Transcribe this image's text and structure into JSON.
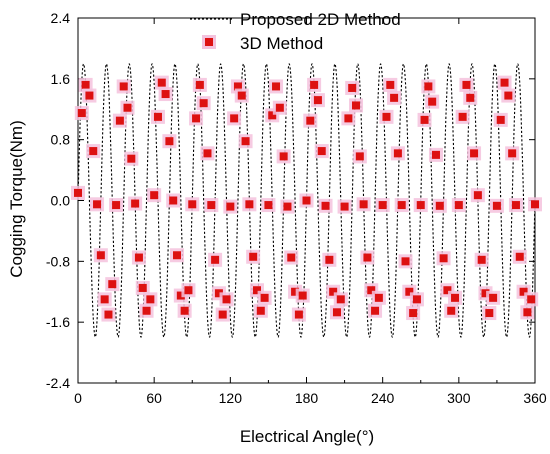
{
  "chart_data": {
    "type": "line",
    "title": "",
    "xlabel": "Electrical Angle(°)",
    "ylabel": "Cogging Torque(Nm)",
    "xlim": [
      0,
      360
    ],
    "ylim": [
      -2.4,
      2.4
    ],
    "x_ticks": [
      "0",
      "60",
      "120",
      "180",
      "240",
      "300",
      "360"
    ],
    "y_ticks": [
      "2.4",
      "1.6",
      "0.8",
      "0.0",
      "-0.8",
      "-1.6",
      "-2.4"
    ],
    "grid": false,
    "legend_position": "top-right",
    "series": [
      {
        "name": "Proposed 2D Method",
        "style": "dashed-line",
        "color": "#000000",
        "x": [
          0,
          2,
          4,
          6,
          8,
          10,
          12,
          14,
          16,
          18,
          20,
          22,
          24,
          26,
          28,
          30,
          32,
          34,
          36,
          38,
          40,
          42,
          44,
          46,
          48,
          50,
          52,
          54,
          56,
          58,
          60,
          62,
          64,
          66,
          68,
          70,
          72,
          74,
          76,
          78,
          80,
          82,
          84,
          86,
          88,
          90,
          92,
          94,
          96,
          98,
          100,
          102,
          104,
          106,
          108,
          110,
          112,
          114,
          116,
          118,
          120,
          122,
          124,
          126,
          128,
          130,
          132,
          134,
          136,
          138,
          140,
          142,
          144,
          146,
          148,
          150,
          152,
          154,
          156,
          158,
          160,
          162,
          164,
          166,
          168,
          170,
          172,
          174,
          176,
          178,
          180,
          182,
          184,
          186,
          188,
          190,
          192,
          194,
          196,
          198,
          200,
          202,
          204,
          206,
          208,
          210,
          212,
          214,
          216,
          218,
          220,
          222,
          224,
          226,
          228,
          230,
          232,
          234,
          236,
          238,
          240,
          242,
          244,
          246,
          248,
          250,
          252,
          254,
          256,
          258,
          260,
          262,
          264,
          266,
          268,
          270,
          272,
          274,
          276,
          278,
          280,
          282,
          284,
          286,
          288,
          290,
          292,
          294,
          296,
          298,
          300,
          302,
          304,
          306,
          308,
          310,
          312,
          314,
          316,
          318,
          320,
          322,
          324,
          326,
          328,
          330,
          332,
          334,
          336,
          338,
          340,
          342,
          344,
          346,
          348,
          350,
          352,
          354,
          356,
          358,
          360
        ],
        "y": [
          0.0,
          1.19,
          1.78,
          1.54,
          0.6,
          -0.6,
          -1.54,
          -1.78,
          -1.19,
          0.0,
          1.19,
          1.78,
          1.54,
          0.6,
          -0.6,
          -1.54,
          -1.78,
          -1.19,
          0.0,
          1.19,
          1.78,
          1.54,
          0.6,
          -0.6,
          -1.54,
          -1.78,
          -1.19,
          0.0,
          1.19,
          1.78,
          1.54,
          0.6,
          -0.6,
          -1.54,
          -1.78,
          -1.19,
          0.0,
          1.19,
          1.78,
          1.54,
          0.6,
          -0.6,
          -1.54,
          -1.78,
          -1.19,
          0.0,
          1.19,
          1.78,
          1.54,
          0.6,
          -0.6,
          -1.54,
          -1.78,
          -1.19,
          0.0,
          1.19,
          1.78,
          1.54,
          0.6,
          -0.6,
          -1.54,
          -1.78,
          -1.19,
          0.0,
          1.19,
          1.78,
          1.54,
          0.6,
          -0.6,
          -1.54,
          -1.78,
          -1.19,
          0.0,
          1.19,
          1.78,
          1.54,
          0.6,
          -0.6,
          -1.54,
          -1.78,
          -1.19,
          0.0,
          1.19,
          1.78,
          1.54,
          0.6,
          -0.6,
          -1.54,
          -1.78,
          -1.19,
          0.0,
          1.19,
          1.78,
          1.54,
          0.6,
          -0.6,
          -1.54,
          -1.78,
          -1.19,
          0.0,
          1.19,
          1.78,
          1.54,
          0.6,
          -0.6,
          -1.54,
          -1.78,
          -1.19,
          0.0,
          1.19,
          1.78,
          1.54,
          0.6,
          -0.6,
          -1.54,
          -1.78,
          -1.19,
          0.0,
          1.19,
          1.78,
          1.54,
          0.6,
          -0.6,
          -1.54,
          -1.78,
          -1.19,
          0.0,
          1.19,
          1.78,
          1.54,
          0.6,
          -0.6,
          -1.54,
          -1.78,
          -1.19,
          0.0,
          1.19,
          1.78,
          1.54,
          0.6,
          -0.6,
          -1.54,
          -1.78,
          -1.19,
          0.0,
          1.19,
          1.78,
          1.54,
          0.6,
          -0.6,
          -1.54,
          -1.78,
          -1.19,
          0.0,
          1.19,
          1.78,
          1.54,
          0.6,
          -0.6,
          -1.54,
          -1.78,
          -1.19,
          0.0,
          1.19,
          1.78,
          1.54,
          0.6,
          -0.6,
          -1.54,
          -1.78,
          -1.19,
          0.0,
          1.19,
          1.78,
          1.54,
          0.6,
          -0.6,
          -1.54,
          -1.78,
          -1.19,
          0.0
        ]
      },
      {
        "name": "3D Method",
        "style": "square-markers",
        "color": "#dd1111",
        "halo_color": "#f4c2dd",
        "x": [
          0,
          3,
          6,
          9,
          12,
          15,
          18,
          21,
          24,
          27,
          30,
          33,
          36,
          39,
          42,
          45,
          48,
          51,
          54,
          57,
          60,
          63,
          66,
          69,
          72,
          75,
          78,
          81,
          84,
          87,
          90,
          93,
          96,
          99,
          102,
          105,
          108,
          111,
          114,
          117,
          120,
          123,
          126,
          129,
          132,
          135,
          138,
          141,
          144,
          147,
          150,
          153,
          156,
          159,
          162,
          165,
          168,
          171,
          174,
          177,
          180,
          183,
          186,
          189,
          192,
          195,
          198,
          201,
          204,
          207,
          210,
          213,
          216,
          219,
          222,
          225,
          228,
          231,
          234,
          237,
          240,
          243,
          246,
          249,
          252,
          255,
          258,
          261,
          264,
          267,
          270,
          273,
          276,
          279,
          282,
          285,
          288,
          291,
          294,
          297,
          300,
          303,
          306,
          309,
          312,
          315,
          318,
          321,
          324,
          327,
          330,
          333,
          336,
          339,
          342,
          345,
          348,
          351,
          354,
          357,
          360
        ],
        "y": [
          0.1,
          1.15,
          1.52,
          1.38,
          0.65,
          -0.05,
          -0.72,
          -1.3,
          -1.5,
          -1.1,
          -0.06,
          1.05,
          1.5,
          1.22,
          0.55,
          -0.04,
          -0.75,
          -1.15,
          -1.45,
          -1.3,
          0.07,
          1.1,
          1.55,
          1.4,
          0.78,
          0.0,
          -0.72,
          -1.25,
          -1.45,
          -1.18,
          -0.05,
          1.08,
          1.52,
          1.28,
          0.62,
          -0.06,
          -0.78,
          -1.22,
          -1.5,
          -1.3,
          -0.08,
          1.08,
          1.5,
          1.38,
          0.78,
          -0.05,
          -0.74,
          -1.18,
          -1.45,
          -1.28,
          -0.06,
          1.12,
          1.5,
          1.22,
          0.58,
          -0.08,
          -0.75,
          -1.2,
          -1.5,
          -1.25,
          0.0,
          1.05,
          1.52,
          1.32,
          0.65,
          -0.07,
          -0.78,
          -1.2,
          -1.47,
          -1.3,
          -0.08,
          1.08,
          1.48,
          1.25,
          0.58,
          -0.05,
          -0.75,
          -1.18,
          -1.45,
          -1.28,
          -0.06,
          1.1,
          1.52,
          1.35,
          0.62,
          -0.06,
          -0.8,
          -1.2,
          -1.48,
          -1.3,
          -0.06,
          1.06,
          1.5,
          1.3,
          0.6,
          -0.07,
          -0.76,
          -1.18,
          -1.45,
          -1.28,
          -0.06,
          1.1,
          1.52,
          1.35,
          0.62,
          0.07,
          -0.78,
          -1.22,
          -1.48,
          -1.28,
          -0.07,
          1.06,
          1.55,
          1.38,
          0.62,
          -0.06,
          -0.74,
          -1.2,
          -1.47,
          -1.3,
          -0.05
        ]
      }
    ]
  }
}
